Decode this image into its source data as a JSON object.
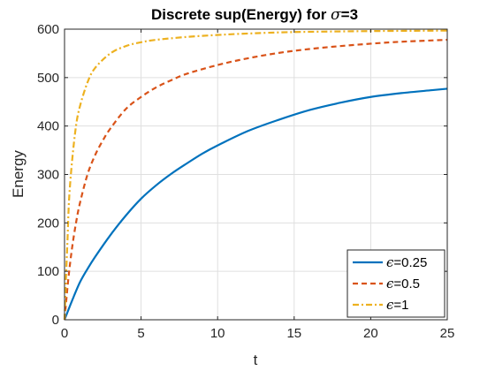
{
  "chart_data": {
    "type": "line",
    "title_prefix": "Discrete sup(Energy) for ",
    "title_symbol": "σ",
    "title_suffix": "=3",
    "xlabel": "t",
    "ylabel": "Energy",
    "xlim": [
      0,
      25
    ],
    "ylim": [
      0,
      600
    ],
    "xticks": [
      0,
      5,
      10,
      15,
      20,
      25
    ],
    "yticks": [
      0,
      100,
      200,
      300,
      400,
      500,
      600
    ],
    "xtick_labels": [
      "0",
      "5",
      "10",
      "15",
      "20",
      "25"
    ],
    "ytick_labels": [
      "0",
      "100",
      "200",
      "300",
      "400",
      "500",
      "600"
    ],
    "grid": true,
    "legend_position": "bottom-right",
    "series": [
      {
        "name_symbol": "ϵ",
        "name_value": "=0.25",
        "color": "#0072BD",
        "style": "solid",
        "x": [
          0,
          0.5,
          1,
          1.5,
          2,
          3,
          4,
          5,
          6,
          7,
          8,
          9,
          10,
          12,
          14,
          16,
          18,
          20,
          22,
          24,
          25
        ],
        "y": [
          0,
          40,
          77,
          105,
          130,
          175,
          215,
          250,
          278,
          302,
          323,
          343,
          360,
          390,
          413,
          433,
          448,
          460,
          468,
          474,
          477
        ]
      },
      {
        "name_symbol": "ϵ",
        "name_value": "=0.5",
        "color": "#D95319",
        "style": "dashed",
        "x": [
          0,
          0.25,
          0.5,
          0.75,
          1,
          1.5,
          2,
          2.5,
          3,
          4,
          5,
          6,
          7,
          8,
          10,
          12,
          14,
          16,
          18,
          20,
          22,
          25
        ],
        "y": [
          0,
          85,
          150,
          200,
          240,
          300,
          340,
          370,
          395,
          435,
          460,
          480,
          495,
          508,
          526,
          540,
          551,
          559,
          565,
          570,
          574,
          578
        ]
      },
      {
        "name_symbol": "ϵ",
        "name_value": "=1",
        "color": "#EDB120",
        "style": "dashdot",
        "x": [
          0,
          0.1,
          0.2,
          0.3,
          0.5,
          0.75,
          1,
          1.5,
          2,
          3,
          4,
          5,
          6,
          8,
          10,
          12,
          15,
          20,
          25
        ],
        "y": [
          0,
          90,
          170,
          250,
          330,
          400,
          440,
          490,
          520,
          550,
          565,
          573,
          578,
          584,
          588,
          591,
          594,
          596,
          597
        ]
      }
    ]
  }
}
